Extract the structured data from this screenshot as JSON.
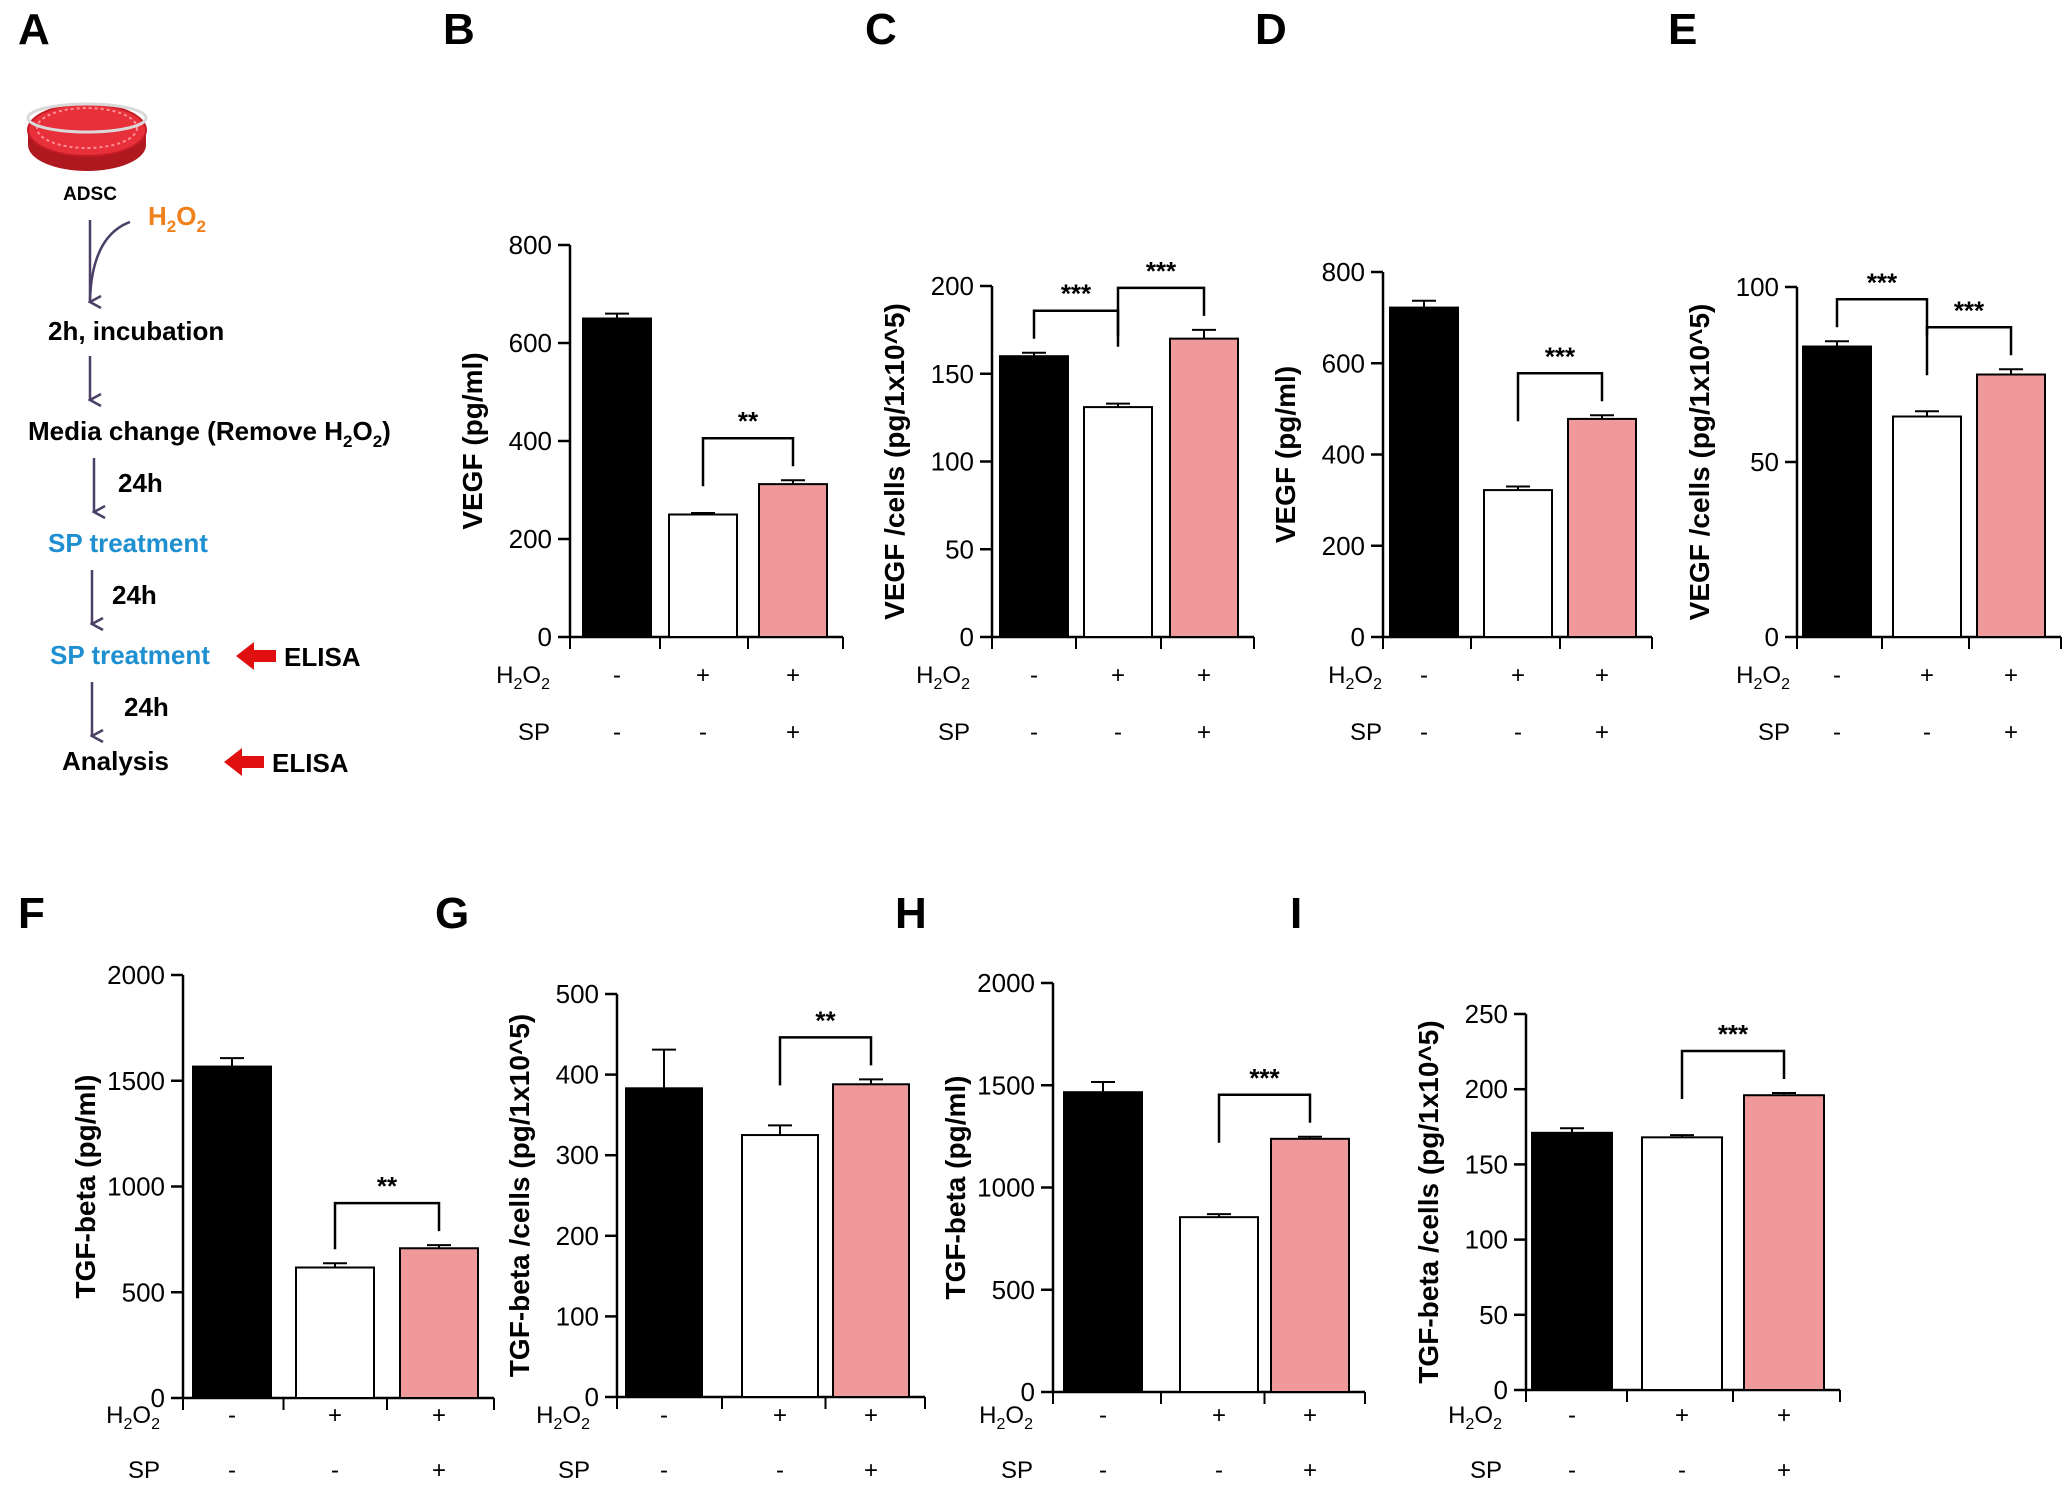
{
  "colors": {
    "control": "#000000",
    "h2o2": "#ffffff",
    "sp": "#f0999a",
    "flow_arrow": "#4a3f66",
    "h2o2_text": "#f0801a",
    "sp_text": "#1e8fd0",
    "elisa_arrow": "#e01010",
    "dish": "#e8303a"
  },
  "panel_a": {
    "letter": "A",
    "dish_label": "ADSC",
    "h2o2_label": "H2O2",
    "steps": [
      "2h, incubation",
      "Media change (Remove H2O2)",
      "SP treatment",
      "SP treatment",
      "Analysis"
    ],
    "intervals": [
      "24h",
      "24h",
      "24h"
    ],
    "elisa_labels": [
      "ELISA",
      "ELISA"
    ]
  },
  "condition_rows": {
    "h2o2": {
      "label": "H2O2",
      "values": [
        "-",
        "+",
        "+"
      ]
    },
    "sp": {
      "label": "SP",
      "values": [
        "-",
        "-",
        "+"
      ]
    }
  },
  "chart_data": [
    {
      "panel": "B",
      "type": "bar",
      "ylabel": "VEGF (pg/ml)",
      "ylim": [
        0,
        800
      ],
      "yticks": [
        0,
        200,
        400,
        600,
        800
      ],
      "values": [
        650,
        250,
        312
      ],
      "errors": [
        10,
        3,
        8
      ],
      "significance": [
        {
          "from": 1,
          "to": 2,
          "label": "**"
        }
      ]
    },
    {
      "panel": "C",
      "type": "bar",
      "ylabel": "VEGF /cells (pg/1x10^5)",
      "ylim": [
        0,
        200
      ],
      "yticks": [
        0,
        50,
        100,
        150,
        200
      ],
      "values": [
        160,
        131,
        170
      ],
      "errors": [
        2,
        2,
        5
      ],
      "significance": [
        {
          "from": 0,
          "to": 1,
          "label": "***"
        },
        {
          "from": 1,
          "to": 2,
          "label": "***"
        }
      ]
    },
    {
      "panel": "D",
      "type": "bar",
      "ylabel": "VEGF (pg/ml)",
      "ylim": [
        0,
        800
      ],
      "yticks": [
        0,
        200,
        400,
        600,
        800
      ],
      "values": [
        722,
        322,
        478
      ],
      "errors": [
        15,
        8,
        8
      ],
      "significance": [
        {
          "from": 1,
          "to": 2,
          "label": "***"
        }
      ]
    },
    {
      "panel": "E",
      "type": "bar",
      "ylabel": "VEGF /cells (pg/1x10^5)",
      "ylim": [
        0,
        100
      ],
      "yticks": [
        0,
        50,
        100
      ],
      "values": [
        83,
        63,
        75
      ],
      "errors": [
        1.5,
        1.5,
        1.5
      ],
      "significance": [
        {
          "from": 0,
          "to": 1,
          "label": "***"
        },
        {
          "from": 1,
          "to": 2,
          "label": "***"
        }
      ]
    },
    {
      "panel": "F",
      "type": "bar",
      "ylabel": "TGF-beta (pg/ml)",
      "ylim": [
        0,
        2000
      ],
      "yticks": [
        0,
        500,
        1000,
        1500,
        2000
      ],
      "values": [
        1567,
        617,
        708
      ],
      "errors": [
        40,
        20,
        15
      ],
      "significance": [
        {
          "from": 1,
          "to": 2,
          "label": "**"
        }
      ]
    },
    {
      "panel": "G",
      "type": "bar",
      "ylabel": "TGF-beta /cells (pg/1x10^5)",
      "ylim": [
        0,
        500
      ],
      "yticks": [
        0,
        100,
        200,
        300,
        400,
        500
      ],
      "values": [
        383,
        325,
        388
      ],
      "errors": [
        48,
        12,
        6
      ],
      "significance": [
        {
          "from": 1,
          "to": 2,
          "label": "**"
        }
      ]
    },
    {
      "panel": "H",
      "type": "bar",
      "ylabel": "TGF-beta (pg/ml)",
      "ylim": [
        0,
        2000
      ],
      "yticks": [
        0,
        500,
        1000,
        1500,
        2000
      ],
      "values": [
        1466,
        855,
        1238
      ],
      "errors": [
        50,
        15,
        10
      ],
      "significance": [
        {
          "from": 1,
          "to": 2,
          "label": "***"
        }
      ]
    },
    {
      "panel": "I",
      "type": "bar",
      "ylabel": "TGF-beta /cells (pg/1x10^5)",
      "ylim": [
        0,
        250
      ],
      "yticks": [
        0,
        50,
        100,
        150,
        200,
        250
      ],
      "values": [
        171,
        168,
        196
      ],
      "errors": [
        3,
        1.5,
        1.5
      ],
      "significance": [
        {
          "from": 1,
          "to": 2,
          "label": "***"
        }
      ]
    }
  ]
}
